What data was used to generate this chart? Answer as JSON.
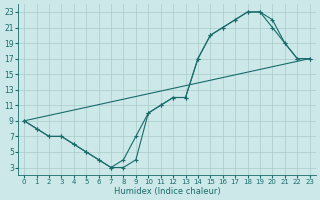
{
  "xlabel": "Humidex (Indice chaleur)",
  "bg_color": "#cce8e8",
  "grid_color": "#aacccc",
  "line_color": "#1a6b6b",
  "xlim": [
    -0.5,
    23.5
  ],
  "ylim": [
    2,
    24
  ],
  "xticks": [
    0,
    1,
    2,
    3,
    4,
    5,
    6,
    7,
    8,
    9,
    10,
    11,
    12,
    13,
    14,
    15,
    16,
    17,
    18,
    19,
    20,
    21,
    22,
    23
  ],
  "yticks": [
    3,
    5,
    7,
    9,
    11,
    13,
    15,
    17,
    19,
    21,
    23
  ],
  "line1_x": [
    0,
    1,
    2,
    3,
    4,
    5,
    6,
    7,
    8,
    9,
    10,
    11,
    12,
    13,
    14,
    15,
    16,
    17,
    18,
    19,
    20,
    21,
    22,
    23
  ],
  "line1_y": [
    9,
    8,
    7,
    7,
    6,
    5,
    4,
    3,
    4,
    7,
    10,
    11,
    12,
    12,
    17,
    20,
    21,
    22,
    23,
    23,
    21,
    19,
    17,
    17
  ],
  "line2_x": [
    0,
    1,
    2,
    3,
    4,
    5,
    6,
    7,
    8,
    9,
    10,
    11,
    12,
    13,
    14,
    15,
    16,
    17,
    18,
    19,
    20,
    21,
    22,
    23
  ],
  "line2_y": [
    9,
    8,
    7,
    7,
    6,
    5,
    4,
    3,
    3,
    4,
    10,
    11,
    12,
    12,
    17,
    20,
    21,
    22,
    23,
    23,
    22,
    19,
    17,
    17
  ],
  "line3_x": [
    0,
    23
  ],
  "line3_y": [
    9,
    17
  ]
}
